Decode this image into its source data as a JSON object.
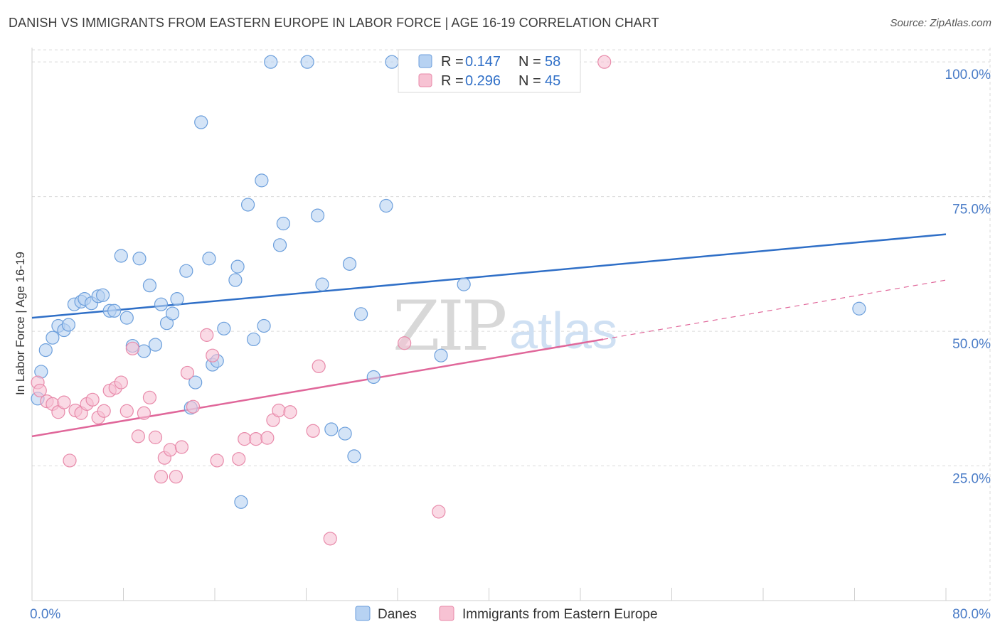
{
  "title": "DANISH VS IMMIGRANTS FROM EASTERN EUROPE IN LABOR FORCE | AGE 16-19 CORRELATION CHART",
  "source": "Source: ZipAtlas.com",
  "watermark": {
    "zip": "ZIP",
    "atlas": "atlas"
  },
  "colors": {
    "danes_fill": "#b7d2f2",
    "danes_stroke": "#6c9fdc",
    "danes_line": "#2f6fc7",
    "imm_fill": "#f7c2d3",
    "imm_stroke": "#e88aaa",
    "imm_line": "#e0679a",
    "grid": "#d9d9d9",
    "axis_text": "#4a7cc7"
  },
  "legend": {
    "rows": [
      {
        "r_label": "R =",
        "r_value": "0.147",
        "n_label": "N =",
        "n_value": "58"
      },
      {
        "r_label": "R =",
        "r_value": "0.296",
        "n_label": "N =",
        "n_value": "45"
      }
    ]
  },
  "bottom_legend": [
    "Danes",
    "Immigrants from Eastern Europe"
  ],
  "chart_data": {
    "type": "scatter",
    "xlabel": "",
    "ylabel": "In Labor Force | Age 16-19",
    "xlim": [
      0,
      80
    ],
    "ylim": [
      0,
      102
    ],
    "x_tick_labels": [
      "0.0%",
      "80.0%"
    ],
    "y_ticks": [
      25,
      50,
      75,
      100
    ],
    "y_tick_labels": [
      "25.0%",
      "50.0%",
      "75.0%",
      "100.0%"
    ],
    "grid": true,
    "legend_position": "top-center",
    "series": [
      {
        "name": "Danes",
        "points": [
          [
            0.5,
            37.5
          ],
          [
            0.8,
            42.5
          ],
          [
            1.2,
            46.5
          ],
          [
            1.8,
            48.8
          ],
          [
            2.3,
            51
          ],
          [
            2.8,
            50.2
          ],
          [
            3.2,
            51.2
          ],
          [
            3.7,
            55
          ],
          [
            4.3,
            55.5
          ],
          [
            4.6,
            56
          ],
          [
            5.2,
            55.2
          ],
          [
            5.8,
            56.5
          ],
          [
            6.2,
            56.7
          ],
          [
            6.8,
            53.8
          ],
          [
            7.2,
            53.8
          ],
          [
            7.8,
            64
          ],
          [
            8.3,
            52.5
          ],
          [
            8.8,
            47.3
          ],
          [
            9.4,
            63.5
          ],
          [
            9.8,
            46.3
          ],
          [
            10.3,
            58.5
          ],
          [
            10.8,
            47.5
          ],
          [
            11.3,
            55
          ],
          [
            11.8,
            51.5
          ],
          [
            12.3,
            53.3
          ],
          [
            12.7,
            56
          ],
          [
            13.5,
            61.2
          ],
          [
            13.9,
            35.8
          ],
          [
            14.3,
            40.5
          ],
          [
            14.8,
            88.8
          ],
          [
            15.5,
            63.5
          ],
          [
            15.8,
            43.8
          ],
          [
            16.2,
            44.5
          ],
          [
            16.8,
            50.5
          ],
          [
            17.8,
            59.5
          ],
          [
            18.0,
            62
          ],
          [
            18.3,
            18.3
          ],
          [
            18.9,
            73.5
          ],
          [
            19.4,
            48.5
          ],
          [
            20.1,
            78
          ],
          [
            20.3,
            51
          ],
          [
            20.9,
            100
          ],
          [
            21.7,
            66
          ],
          [
            22.0,
            70
          ],
          [
            24.1,
            100
          ],
          [
            25.0,
            71.5
          ],
          [
            25.4,
            58.7
          ],
          [
            26.2,
            31.8
          ],
          [
            27.4,
            31
          ],
          [
            27.8,
            62.5
          ],
          [
            28.2,
            26.8
          ],
          [
            28.8,
            53.2
          ],
          [
            29.9,
            41.5
          ],
          [
            31.0,
            73.3
          ],
          [
            31.5,
            100
          ],
          [
            35.8,
            45.5
          ],
          [
            37.8,
            58.7
          ],
          [
            72.4,
            54.2
          ]
        ]
      },
      {
        "name": "Immigrants from Eastern Europe",
        "points": [
          [
            0.5,
            40.5
          ],
          [
            0.7,
            39
          ],
          [
            1.3,
            37
          ],
          [
            1.8,
            36.5
          ],
          [
            2.3,
            35
          ],
          [
            2.8,
            36.8
          ],
          [
            3.3,
            26
          ],
          [
            3.8,
            35.3
          ],
          [
            4.3,
            34.8
          ],
          [
            4.8,
            36.5
          ],
          [
            5.3,
            37.3
          ],
          [
            5.8,
            34
          ],
          [
            6.3,
            35.2
          ],
          [
            6.8,
            39
          ],
          [
            7.3,
            39.5
          ],
          [
            7.8,
            40.5
          ],
          [
            8.3,
            35.2
          ],
          [
            8.8,
            46.8
          ],
          [
            9.3,
            30.5
          ],
          [
            9.8,
            34.8
          ],
          [
            10.3,
            37.7
          ],
          [
            10.8,
            30.3
          ],
          [
            11.3,
            23
          ],
          [
            11.6,
            26.5
          ],
          [
            12.1,
            28
          ],
          [
            12.6,
            23
          ],
          [
            13.1,
            28.5
          ],
          [
            13.6,
            42.3
          ],
          [
            14.1,
            36
          ],
          [
            15.3,
            49.3
          ],
          [
            15.8,
            45.5
          ],
          [
            16.2,
            26
          ],
          [
            18.1,
            26.3
          ],
          [
            18.6,
            30
          ],
          [
            19.6,
            30
          ],
          [
            20.6,
            30.2
          ],
          [
            21.1,
            33.5
          ],
          [
            21.6,
            35.3
          ],
          [
            22.6,
            35
          ],
          [
            24.6,
            31.5
          ],
          [
            25.1,
            43.5
          ],
          [
            26.1,
            11.5
          ],
          [
            32.6,
            47.8
          ],
          [
            35.6,
            16.5
          ],
          [
            50.1,
            100
          ]
        ]
      }
    ],
    "trend_lines": [
      {
        "series": "Danes",
        "x": [
          0,
          80
        ],
        "y": [
          52.5,
          68
        ]
      },
      {
        "series": "Immigrants from Eastern Europe",
        "x": [
          0,
          50
        ],
        "y": [
          30.5,
          48.5
        ],
        "dashed_extension_to": [
          80,
          59.5
        ]
      }
    ]
  }
}
